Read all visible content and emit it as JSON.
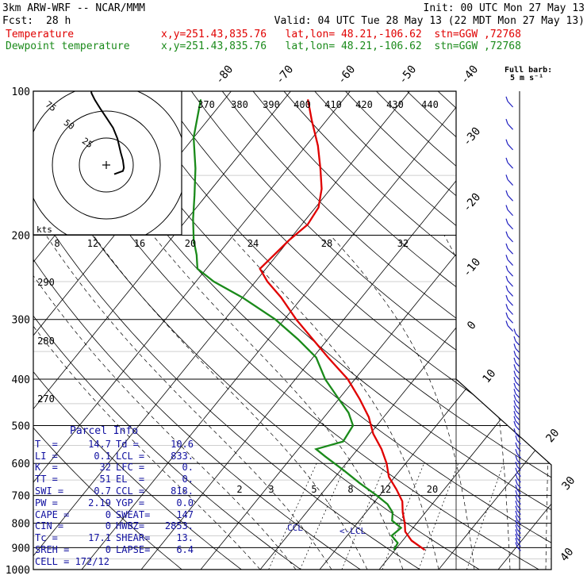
{
  "header": {
    "model": "3km ARW-WRF -- NCAR/MMM",
    "init": "Init: 00 UTC Mon 27 May 13",
    "fcst_label": "Fcst:",
    "fcst_value": "28 h",
    "valid": "Valid: 04 UTC Tue 28 May 13 (22 MDT Mon 27 May 13)",
    "temperature_label": "Temperature",
    "dewpoint_label": "Dewpoint temperature",
    "location_info": "x,y=251.43,835.76   lat,lon= 48.21,-106.62  stn=GGW ,72768"
  },
  "wind_key": {
    "title": "Full barb:",
    "value": "5 m s⁻¹"
  },
  "hodograph": {
    "units": "kts",
    "rings": [
      "25",
      "50",
      "75"
    ]
  },
  "parcel_info": {
    "title": "Parcel Info",
    "rows": [
      [
        "T  =",
        "14.7",
        "Td =",
        "10.6"
      ],
      [
        "LI =",
        "0.1",
        "LCL =",
        "833."
      ],
      [
        "K  =",
        "32",
        "LFC =",
        "0."
      ],
      [
        "TT =",
        "51",
        "EL  =",
        "0."
      ],
      [
        "SWI =",
        "0.7",
        "CCL =",
        "818."
      ],
      [
        "PW =",
        "2.19",
        "YGP =",
        "0.0"
      ],
      [
        "CAPE =",
        "0",
        "SWEAT=",
        "147"
      ],
      [
        "CIN =",
        "0",
        "HWBZ=",
        "2853."
      ],
      [
        "Tc =",
        "17.1",
        "SHEAR=",
        "13."
      ],
      [
        "SREH =",
        "0",
        "LAPSE=",
        "6.4"
      ],
      [
        "CELL = 172/12",
        "",
        "",
        ""
      ]
    ]
  },
  "chart_data": {
    "type": "line",
    "subtype": "skew-T log-p sounding",
    "y_axis": {
      "scale": "log",
      "range_hPa": [
        1000,
        100
      ],
      "tick_labels": [
        "100",
        "200",
        "300",
        "400",
        "500",
        "600",
        "700",
        "800",
        "900",
        "1000"
      ]
    },
    "isotherm_labels_C": [
      "-80",
      "-70",
      "-60",
      "-50",
      "-40",
      "-30",
      "-20",
      "-10",
      "0",
      "10",
      "20",
      "30",
      "40"
    ],
    "theta_labels_K": [
      "370",
      "380",
      "390",
      "400",
      "410",
      "420",
      "430",
      "440"
    ],
    "mixing_ratio_labels": [
      "2",
      "3",
      "5",
      "8",
      "12",
      "20"
    ],
    "mixing_ratio_top_labels": [
      "8",
      "12",
      "16",
      "20",
      "24",
      "28",
      "32"
    ],
    "theta_side_labels": [
      "290",
      "280",
      "270"
    ],
    "level_annotations": [
      "CCL",
      "LCL"
    ],
    "series": [
      {
        "name": "Temperature",
        "color": "#e00000",
        "points": [
          [
            910,
            15.0
          ],
          [
            870,
            11.5
          ],
          [
            833,
            9.2
          ],
          [
            800,
            8.0
          ],
          [
            760,
            6.2
          ],
          [
            720,
            4.6
          ],
          [
            680,
            2.0
          ],
          [
            640,
            -1.0
          ],
          [
            600,
            -3.2
          ],
          [
            560,
            -6.0
          ],
          [
            520,
            -9.5
          ],
          [
            480,
            -12.5
          ],
          [
            440,
            -16.5
          ],
          [
            400,
            -21.2
          ],
          [
            360,
            -27.5
          ],
          [
            330,
            -32.5
          ],
          [
            300,
            -38.0
          ],
          [
            270,
            -43.5
          ],
          [
            250,
            -48.0
          ],
          [
            235,
            -51.0
          ],
          [
            220,
            -50.5
          ],
          [
            205,
            -50.0
          ],
          [
            190,
            -49.0
          ],
          [
            175,
            -49.5
          ],
          [
            160,
            -51.5
          ],
          [
            145,
            -54.5
          ],
          [
            130,
            -58.0
          ],
          [
            115,
            -62.5
          ],
          [
            104,
            -66.0
          ]
        ]
      },
      {
        "name": "Dewpoint temperature",
        "color": "#1a8a1a",
        "points": [
          [
            910,
            9.8
          ],
          [
            880,
            9.5
          ],
          [
            850,
            7.5
          ],
          [
            818,
            8.0
          ],
          [
            790,
            5.5
          ],
          [
            760,
            4.5
          ],
          [
            730,
            2.5
          ],
          [
            700,
            -0.5
          ],
          [
            660,
            -5.0
          ],
          [
            620,
            -9.5
          ],
          [
            580,
            -14.5
          ],
          [
            560,
            -17.0
          ],
          [
            540,
            -13.5
          ],
          [
            500,
            -14.0
          ],
          [
            470,
            -16.5
          ],
          [
            440,
            -20.0
          ],
          [
            400,
            -25.0
          ],
          [
            360,
            -29.5
          ],
          [
            330,
            -35.0
          ],
          [
            300,
            -41.5
          ],
          [
            270,
            -50.0
          ],
          [
            250,
            -57.0
          ],
          [
            235,
            -61.5
          ],
          [
            220,
            -63.5
          ],
          [
            205,
            -66.0
          ],
          [
            185,
            -69.0
          ],
          [
            165,
            -72.0
          ],
          [
            145,
            -75.5
          ],
          [
            125,
            -80.0
          ],
          [
            104,
            -84.0
          ]
        ]
      }
    ],
    "hodograph_path_kts": [
      [
        0,
        -1
      ],
      [
        8,
        -4
      ],
      [
        9,
        -7
      ],
      [
        8,
        -14
      ],
      [
        6,
        -21
      ],
      [
        3,
        -34
      ],
      [
        -1,
        -44
      ],
      [
        -7,
        -53
      ],
      [
        -13,
        -62
      ],
      [
        -18,
        -70
      ],
      [
        -21,
        -76
      ],
      [
        -22,
        -82
      ]
    ]
  }
}
